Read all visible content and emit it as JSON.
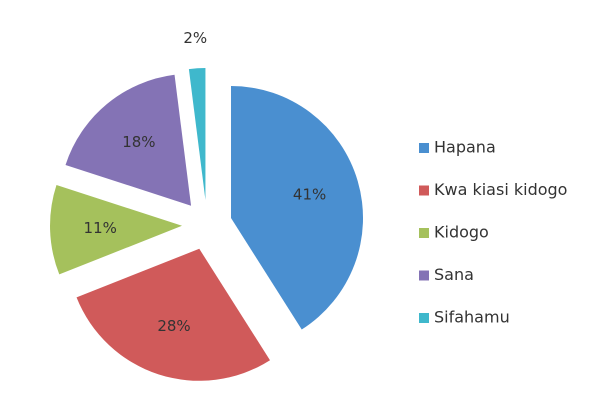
{
  "chart_data": {
    "type": "pie",
    "categories": [
      "Hapana",
      "Kwa kiasi kidogo",
      "Kidogo",
      "Sana",
      "Sifahamu"
    ],
    "values": [
      41,
      28,
      11,
      18,
      2
    ],
    "value_labels": [
      "41%",
      "28%",
      "11%",
      "18%",
      "2%"
    ],
    "colors": [
      "#4a8fd0",
      "#d05a5a",
      "#a5c15c",
      "#8473b5",
      "#3fb8cc"
    ],
    "legend": "right"
  }
}
